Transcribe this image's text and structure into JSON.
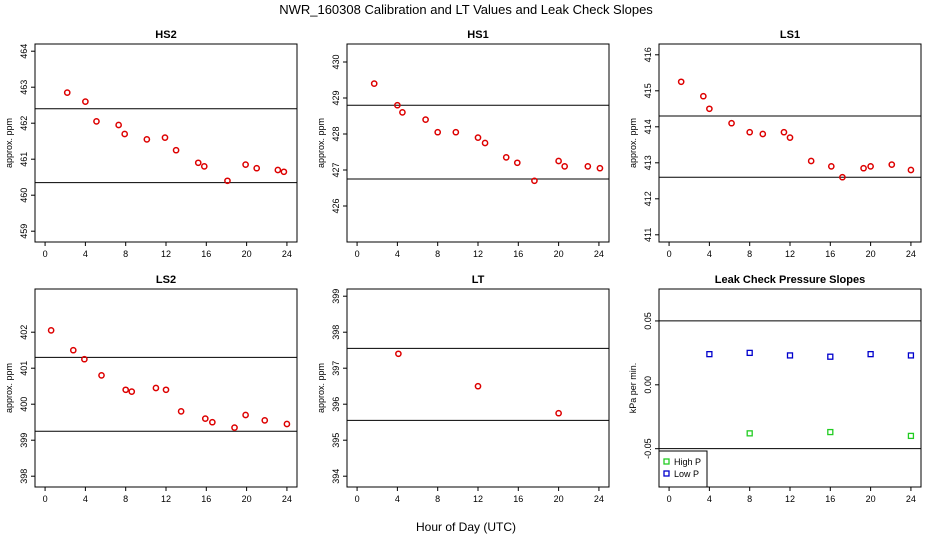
{
  "figure": {
    "title": "NWR_160308  Calibration and LT Values and Leak Check Slopes",
    "xlabel": "Hour of Day (UTC)"
  },
  "chart_data": [
    {
      "id": "hs2",
      "type": "scatter",
      "title": "HS2",
      "ylabel": "approx. ppm",
      "xlim": [
        -1,
        25
      ],
      "ylim": [
        458.7,
        464.2
      ],
      "xticks": [
        0,
        4,
        8,
        12,
        16,
        20,
        24
      ],
      "yticks": [
        459,
        460,
        461,
        462,
        463,
        464
      ],
      "hlines": [
        462.4,
        460.35
      ],
      "series": [
        {
          "marker": "circle",
          "color": "#dd0000",
          "points": [
            [
              2.2,
              462.85
            ],
            [
              4.0,
              462.6
            ],
            [
              5.1,
              462.05
            ],
            [
              7.3,
              461.95
            ],
            [
              7.9,
              461.7
            ],
            [
              10.1,
              461.55
            ],
            [
              11.9,
              461.6
            ],
            [
              13.0,
              461.25
            ],
            [
              15.2,
              460.9
            ],
            [
              15.8,
              460.8
            ],
            [
              18.1,
              460.4
            ],
            [
              19.9,
              460.85
            ],
            [
              21.0,
              460.75
            ],
            [
              23.1,
              460.7
            ],
            [
              23.7,
              460.65
            ]
          ]
        }
      ]
    },
    {
      "id": "hs1",
      "type": "scatter",
      "title": "HS1",
      "ylabel": "approx. ppm",
      "xlim": [
        -1,
        25
      ],
      "ylim": [
        425.0,
        430.5
      ],
      "xticks": [
        0,
        4,
        8,
        12,
        16,
        20,
        24
      ],
      "yticks": [
        426,
        427,
        428,
        429,
        430
      ],
      "hlines": [
        428.8,
        426.75
      ],
      "series": [
        {
          "marker": "circle",
          "color": "#dd0000",
          "points": [
            [
              1.7,
              429.4
            ],
            [
              4.0,
              428.8
            ],
            [
              4.5,
              428.6
            ],
            [
              6.8,
              428.4
            ],
            [
              8.0,
              428.05
            ],
            [
              9.8,
              428.05
            ],
            [
              12.0,
              427.9
            ],
            [
              12.7,
              427.75
            ],
            [
              14.8,
              427.35
            ],
            [
              15.9,
              427.2
            ],
            [
              17.6,
              426.7
            ],
            [
              20.0,
              427.25
            ],
            [
              20.6,
              427.1
            ],
            [
              22.9,
              427.1
            ],
            [
              24.1,
              427.05
            ]
          ]
        }
      ]
    },
    {
      "id": "ls1",
      "type": "scatter",
      "title": "LS1",
      "ylabel": "approx. ppm",
      "xlim": [
        -1,
        25
      ],
      "ylim": [
        410.8,
        416.3
      ],
      "xticks": [
        0,
        4,
        8,
        12,
        16,
        20,
        24
      ],
      "yticks": [
        411,
        412,
        413,
        414,
        415,
        416
      ],
      "hlines": [
        414.3,
        412.6
      ],
      "series": [
        {
          "marker": "circle",
          "color": "#dd0000",
          "points": [
            [
              1.2,
              415.25
            ],
            [
              3.4,
              414.85
            ],
            [
              4.0,
              414.5
            ],
            [
              6.2,
              414.1
            ],
            [
              8.0,
              413.85
            ],
            [
              9.3,
              413.8
            ],
            [
              11.4,
              413.85
            ],
            [
              12.0,
              413.7
            ],
            [
              14.1,
              413.05
            ],
            [
              16.1,
              412.9
            ],
            [
              17.2,
              412.6
            ],
            [
              19.3,
              412.85
            ],
            [
              20.0,
              412.9
            ],
            [
              22.1,
              412.95
            ],
            [
              24.0,
              412.8
            ]
          ]
        }
      ]
    },
    {
      "id": "ls2",
      "type": "scatter",
      "title": "LS2",
      "ylabel": "approx. ppm",
      "xlim": [
        -1,
        25
      ],
      "ylim": [
        397.7,
        403.2
      ],
      "xticks": [
        0,
        4,
        8,
        12,
        16,
        20,
        24
      ],
      "yticks": [
        398,
        399,
        400,
        401,
        402
      ],
      "hlines": [
        401.3,
        399.25
      ],
      "series": [
        {
          "marker": "circle",
          "color": "#dd0000",
          "points": [
            [
              0.6,
              402.05
            ],
            [
              2.8,
              401.5
            ],
            [
              3.9,
              401.25
            ],
            [
              5.6,
              400.8
            ],
            [
              8.0,
              400.4
            ],
            [
              8.6,
              400.35
            ],
            [
              11.0,
              400.45
            ],
            [
              12.0,
              400.4
            ],
            [
              13.5,
              399.8
            ],
            [
              15.9,
              399.6
            ],
            [
              16.6,
              399.5
            ],
            [
              18.8,
              399.35
            ],
            [
              19.9,
              399.7
            ],
            [
              21.8,
              399.55
            ],
            [
              24.0,
              399.45
            ]
          ]
        }
      ]
    },
    {
      "id": "lt",
      "type": "scatter",
      "title": "LT",
      "ylabel": "approx. ppm",
      "xlim": [
        -1,
        25
      ],
      "ylim": [
        393.7,
        399.2
      ],
      "xticks": [
        0,
        4,
        8,
        12,
        16,
        20,
        24
      ],
      "yticks": [
        394,
        395,
        396,
        397,
        398,
        399
      ],
      "hlines": [
        397.55,
        395.55
      ],
      "series": [
        {
          "marker": "circle",
          "color": "#dd0000",
          "points": [
            [
              4.1,
              397.4
            ],
            [
              12.0,
              396.5
            ],
            [
              20.0,
              395.75
            ]
          ]
        }
      ]
    },
    {
      "id": "leak",
      "type": "scatter",
      "title": "Leak Check Pressure Slopes",
      "ylabel": "kPa per min.",
      "xlim": [
        -1,
        25
      ],
      "ylim": [
        -0.08,
        0.075
      ],
      "xticks": [
        0,
        4,
        8,
        12,
        16,
        20,
        24
      ],
      "yticks": [
        -0.05,
        0.0,
        0.05
      ],
      "ytick_labels": [
        "-0.05",
        "0.00",
        "0.05"
      ],
      "hlines": [
        0.05,
        -0.05
      ],
      "legend": {
        "position": "bottom-left"
      },
      "series": [
        {
          "name": "High P",
          "marker": "square",
          "color": "#22cc22",
          "points": [
            [
              8.0,
              -0.038
            ],
            [
              16.0,
              -0.037
            ],
            [
              24.0,
              -0.04
            ]
          ]
        },
        {
          "name": "Low P",
          "marker": "square",
          "color": "#0000cc",
          "points": [
            [
              4.0,
              0.024
            ],
            [
              8.0,
              0.025
            ],
            [
              12.0,
              0.023
            ],
            [
              16.0,
              0.022
            ],
            [
              20.0,
              0.024
            ],
            [
              24.0,
              0.023
            ]
          ]
        }
      ]
    }
  ]
}
